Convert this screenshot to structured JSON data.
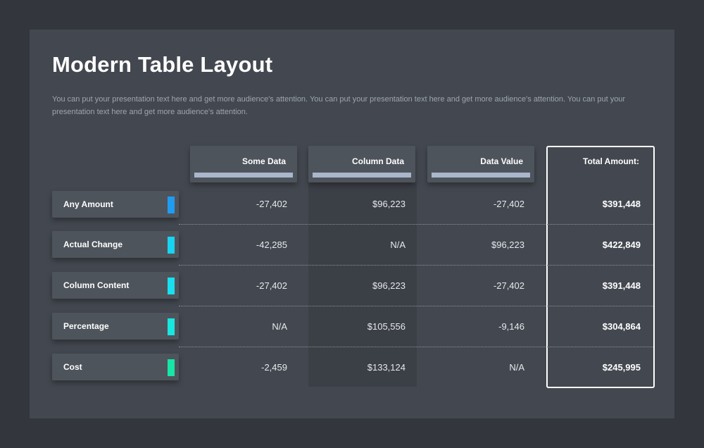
{
  "title": "Modern Table Layout",
  "subtitle": "You can put your presentation text here and get more audience's attention. You can put your presentation text here and get more audience's attention. You can put your presentation text here and get more audience's attention.",
  "columns": {
    "c1": "Some Data",
    "c2": "Column Data",
    "c3": "Data Value",
    "total": "Total Amount:"
  },
  "colors": {
    "marker_0": "#1f9cf0",
    "marker_1": "#18d4f0",
    "marker_2": "#18e0ee",
    "marker_3": "#18e6e0",
    "marker_4": "#16e6a6",
    "header_bar": "#aab6cc"
  },
  "rows": [
    {
      "label": "Any Amount",
      "c1": "-27,402",
      "c2": "$96,223",
      "c3": "-27,402",
      "total": "$391,448"
    },
    {
      "label": "Actual Change",
      "c1": "-42,285",
      "c2": "N/A",
      "c3": "$96,223",
      "total": "$422,849"
    },
    {
      "label": "Column Content",
      "c1": "-27,402",
      "c2": "$96,223",
      "c3": "-27,402",
      "total": "$391,448"
    },
    {
      "label": "Percentage",
      "c1": "N/A",
      "c2": "$105,556",
      "c3": "-9,146",
      "total": "$304,864"
    },
    {
      "label": "Cost",
      "c1": "-2,459",
      "c2": "$133,124",
      "c3": "N/A",
      "total": "$245,995"
    }
  ]
}
